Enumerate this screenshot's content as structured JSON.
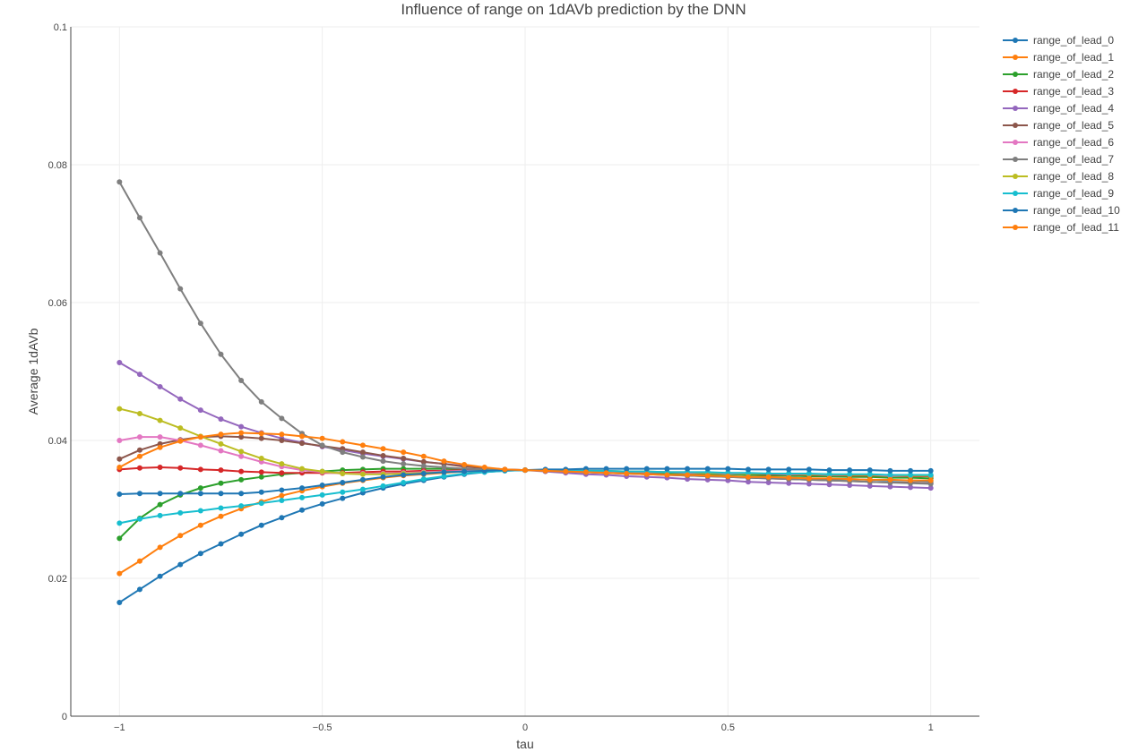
{
  "chart_data": {
    "type": "line",
    "title": "Influence of range on 1dAVb prediction by the DNN",
    "xlabel": "tau",
    "ylabel": "Average 1dAVb",
    "xlim": [
      -1.12,
      1.12
    ],
    "ylim": [
      0,
      0.1
    ],
    "x_ticks": [
      -1,
      -0.5,
      0,
      0.5,
      1
    ],
    "x_tick_labels": [
      "−1",
      "−0.5",
      "0",
      "0.5",
      "1"
    ],
    "y_ticks": [
      0,
      0.02,
      0.04,
      0.06,
      0.08,
      0.1
    ],
    "y_tick_labels": [
      "0",
      "0.02",
      "0.04",
      "0.06",
      "0.08",
      "0.1"
    ],
    "grid": true,
    "legend_position": "right",
    "x": [
      -1,
      -0.95,
      -0.9,
      -0.85,
      -0.8,
      -0.75,
      -0.7,
      -0.65,
      -0.6,
      -0.55,
      -0.5,
      -0.45,
      -0.4,
      -0.35,
      -0.3,
      -0.25,
      -0.2,
      -0.15,
      -0.1,
      -0.05,
      0,
      0.05,
      0.1,
      0.15,
      0.2,
      0.25,
      0.3,
      0.35,
      0.4,
      0.45,
      0.5,
      0.55,
      0.6,
      0.65,
      0.7,
      0.75,
      0.8,
      0.85,
      0.9,
      0.95,
      1
    ],
    "series": [
      {
        "name": "range_of_lead_0",
        "color": "#1f77b4",
        "values": [
          0.0165,
          0.0184,
          0.0203,
          0.022,
          0.0236,
          0.025,
          0.0264,
          0.0277,
          0.0288,
          0.0299,
          0.0308,
          0.0316,
          0.0324,
          0.0331,
          0.0337,
          0.0342,
          0.0347,
          0.0351,
          0.0354,
          0.0356,
          0.0357,
          0.0357,
          0.0356,
          0.0355,
          0.0354,
          0.0353,
          0.0352,
          0.0351,
          0.035,
          0.0349,
          0.0348,
          0.0347,
          0.0346,
          0.0346,
          0.0345,
          0.0344,
          0.0344,
          0.0343,
          0.0342,
          0.0342,
          0.0341
        ]
      },
      {
        "name": "range_of_lead_1",
        "color": "#ff7f0e",
        "values": [
          0.0207,
          0.0225,
          0.0245,
          0.0262,
          0.0277,
          0.029,
          0.0301,
          0.0311,
          0.032,
          0.0327,
          0.0333,
          0.0338,
          0.0342,
          0.0346,
          0.0349,
          0.0351,
          0.0353,
          0.0355,
          0.0356,
          0.0357,
          0.0357,
          0.0357,
          0.0356,
          0.0356,
          0.0355,
          0.0355,
          0.0354,
          0.0354,
          0.0353,
          0.0353,
          0.0352,
          0.0352,
          0.0351,
          0.0351,
          0.0351,
          0.035,
          0.035,
          0.0349,
          0.0349,
          0.0349,
          0.0348
        ]
      },
      {
        "name": "range_of_lead_2",
        "color": "#2ca02c",
        "values": [
          0.0258,
          0.0287,
          0.0307,
          0.0321,
          0.0331,
          0.0338,
          0.0343,
          0.0347,
          0.0351,
          0.0353,
          0.0355,
          0.0357,
          0.0358,
          0.0359,
          0.0359,
          0.0359,
          0.0359,
          0.0358,
          0.0358,
          0.0357,
          0.0357,
          0.0356,
          0.0356,
          0.0355,
          0.0354,
          0.0354,
          0.0353,
          0.0352,
          0.0352,
          0.0351,
          0.0351,
          0.035,
          0.0349,
          0.0349,
          0.0348,
          0.0348,
          0.0347,
          0.0347,
          0.0346,
          0.0346,
          0.0345
        ]
      },
      {
        "name": "range_of_lead_3",
        "color": "#d62728",
        "values": [
          0.0358,
          0.036,
          0.0361,
          0.036,
          0.0358,
          0.0357,
          0.0355,
          0.0354,
          0.0353,
          0.0353,
          0.0353,
          0.0353,
          0.0354,
          0.0355,
          0.0355,
          0.0356,
          0.0356,
          0.0357,
          0.0357,
          0.0357,
          0.0357,
          0.0357,
          0.0356,
          0.0356,
          0.0355,
          0.0355,
          0.0354,
          0.0354,
          0.0353,
          0.0353,
          0.0352,
          0.0352,
          0.0351,
          0.0351,
          0.035,
          0.035,
          0.0349,
          0.0349,
          0.0349,
          0.0348,
          0.0348
        ]
      },
      {
        "name": "range_of_lead_4",
        "color": "#9467bd",
        "values": [
          0.0513,
          0.0496,
          0.0478,
          0.046,
          0.0444,
          0.0431,
          0.042,
          0.0411,
          0.0403,
          0.0397,
          0.0391,
          0.0386,
          0.0381,
          0.0377,
          0.0373,
          0.0369,
          0.0366,
          0.0363,
          0.036,
          0.0358,
          0.0357,
          0.0355,
          0.0353,
          0.0351,
          0.035,
          0.0348,
          0.0347,
          0.0346,
          0.0344,
          0.0343,
          0.0342,
          0.034,
          0.0339,
          0.0338,
          0.0337,
          0.0336,
          0.0335,
          0.0334,
          0.0333,
          0.0332,
          0.0331
        ]
      },
      {
        "name": "range_of_lead_5",
        "color": "#8c564b",
        "values": [
          0.0373,
          0.0386,
          0.0395,
          0.0401,
          0.0405,
          0.0406,
          0.0405,
          0.0403,
          0.04,
          0.0396,
          0.0392,
          0.0388,
          0.0383,
          0.0378,
          0.0374,
          0.0369,
          0.0366,
          0.0362,
          0.036,
          0.0358,
          0.0357,
          0.0356,
          0.0355,
          0.0354,
          0.0353,
          0.0352,
          0.0351,
          0.035,
          0.0349,
          0.0348,
          0.0347,
          0.0346,
          0.0345,
          0.0344,
          0.0343,
          0.0342,
          0.0341,
          0.034,
          0.0339,
          0.0339,
          0.0338
        ]
      },
      {
        "name": "range_of_lead_6",
        "color": "#e377c2",
        "values": [
          0.04,
          0.0405,
          0.0405,
          0.04,
          0.0393,
          0.0385,
          0.0377,
          0.0369,
          0.0362,
          0.0357,
          0.0354,
          0.0352,
          0.0352,
          0.0352,
          0.0353,
          0.0354,
          0.0355,
          0.0356,
          0.0356,
          0.0357,
          0.0357,
          0.0357,
          0.0356,
          0.0356,
          0.0355,
          0.0355,
          0.0354,
          0.0354,
          0.0353,
          0.0353,
          0.0352,
          0.0352,
          0.0352,
          0.0351,
          0.0351,
          0.035,
          0.035,
          0.035,
          0.0349,
          0.0349,
          0.0349
        ]
      },
      {
        "name": "range_of_lead_7",
        "color": "#7f7f7f",
        "values": [
          0.0775,
          0.0723,
          0.0672,
          0.062,
          0.057,
          0.0525,
          0.0487,
          0.0456,
          0.0432,
          0.041,
          0.0393,
          0.0383,
          0.0376,
          0.037,
          0.0366,
          0.0363,
          0.0361,
          0.0359,
          0.0358,
          0.0357,
          0.0357,
          0.0356,
          0.0355,
          0.0354,
          0.0353,
          0.0352,
          0.0351,
          0.035,
          0.0349,
          0.0348,
          0.0347,
          0.0346,
          0.0345,
          0.0344,
          0.0343,
          0.0342,
          0.0341,
          0.034,
          0.0339,
          0.0338,
          0.0337
        ]
      },
      {
        "name": "range_of_lead_8",
        "color": "#bcbd22",
        "values": [
          0.0446,
          0.0439,
          0.0429,
          0.0418,
          0.0406,
          0.0395,
          0.0384,
          0.0374,
          0.0366,
          0.0359,
          0.0355,
          0.0352,
          0.0351,
          0.0351,
          0.0352,
          0.0353,
          0.0354,
          0.0355,
          0.0356,
          0.0357,
          0.0357,
          0.0357,
          0.0357,
          0.0356,
          0.0356,
          0.0355,
          0.0355,
          0.0354,
          0.0354,
          0.0353,
          0.0353,
          0.0352,
          0.0352,
          0.0352,
          0.0351,
          0.0351,
          0.035,
          0.035,
          0.035,
          0.0349,
          0.0349
        ]
      },
      {
        "name": "range_of_lead_9",
        "color": "#17becf",
        "values": [
          0.028,
          0.0286,
          0.0291,
          0.0295,
          0.0298,
          0.0302,
          0.0305,
          0.0309,
          0.0313,
          0.0317,
          0.0321,
          0.0325,
          0.0329,
          0.0334,
          0.0339,
          0.0344,
          0.0348,
          0.0352,
          0.0354,
          0.0356,
          0.0357,
          0.0357,
          0.0357,
          0.0356,
          0.0356,
          0.0355,
          0.0355,
          0.0354,
          0.0354,
          0.0354,
          0.0353,
          0.0353,
          0.0352,
          0.0352,
          0.0352,
          0.0351,
          0.0351,
          0.0351,
          0.035,
          0.035,
          0.035
        ]
      },
      {
        "name": "range_of_lead_10",
        "color": "#1f77b4",
        "values": [
          0.0322,
          0.0323,
          0.0323,
          0.0323,
          0.0323,
          0.0323,
          0.0323,
          0.0325,
          0.0328,
          0.0331,
          0.0335,
          0.0339,
          0.0343,
          0.0347,
          0.035,
          0.0352,
          0.0354,
          0.0355,
          0.0356,
          0.0357,
          0.0357,
          0.0358,
          0.0358,
          0.0359,
          0.0359,
          0.0359,
          0.0359,
          0.0359,
          0.0359,
          0.0359,
          0.0359,
          0.0358,
          0.0358,
          0.0358,
          0.0358,
          0.0357,
          0.0357,
          0.0357,
          0.0356,
          0.0356,
          0.0356
        ]
      },
      {
        "name": "range_of_lead_11",
        "color": "#ff7f0e",
        "values": [
          0.0361,
          0.0377,
          0.039,
          0.0399,
          0.0405,
          0.0409,
          0.0411,
          0.041,
          0.0409,
          0.0406,
          0.0403,
          0.0398,
          0.0393,
          0.0388,
          0.0383,
          0.0377,
          0.037,
          0.0365,
          0.0361,
          0.0358,
          0.0357,
          0.0356,
          0.0355,
          0.0354,
          0.0353,
          0.0352,
          0.0351,
          0.035,
          0.035,
          0.0349,
          0.0348,
          0.0347,
          0.0347,
          0.0346,
          0.0345,
          0.0345,
          0.0344,
          0.0343,
          0.0343,
          0.0342,
          0.0342
        ]
      }
    ]
  }
}
